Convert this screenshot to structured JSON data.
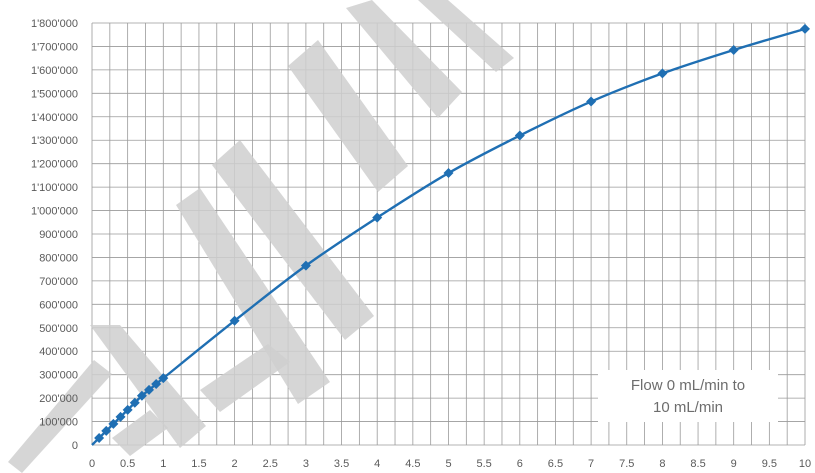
{
  "chart_data": {
    "type": "line",
    "title": "",
    "xlabel": "",
    "ylabel": "",
    "xlim": [
      0,
      10
    ],
    "ylim": [
      0,
      1800000
    ],
    "grid": true,
    "legend": "none",
    "x_ticks": [
      "0",
      "0.5",
      "1",
      "1.5",
      "2",
      "2.5",
      "3",
      "3.5",
      "4",
      "4.5",
      "5",
      "5.5",
      "6",
      "6.5",
      "7",
      "7.5",
      "8",
      "8.5",
      "9",
      "9.5",
      "10"
    ],
    "y_ticks": [
      "0",
      "100'000",
      "200'000",
      "300'000",
      "400'000",
      "500'000",
      "600'000",
      "700'000",
      "800'000",
      "900'000",
      "1'000'000",
      "1'100'000",
      "1'200'000",
      "1'300'000",
      "1'400'000",
      "1'500'000",
      "1'600'000",
      "1'700'000",
      "1'800'000"
    ],
    "series": [
      {
        "color": "#1f6fb3",
        "marker": "diamond",
        "x": [
          0.1,
          0.2,
          0.3,
          0.4,
          0.5,
          0.6,
          0.7,
          0.8,
          0.9,
          1,
          2,
          3,
          4,
          5,
          6,
          7,
          8,
          9,
          10
        ],
        "y": [
          30000,
          60000,
          90000,
          120000,
          150000,
          180000,
          210000,
          235000,
          260000,
          285000,
          530000,
          765000,
          970000,
          1160000,
          1320000,
          1465000,
          1585000,
          1685000,
          1775000
        ]
      }
    ],
    "annotation": {
      "line1": "Flow 0 mL/min to",
      "line2": "10 mL/min"
    },
    "watermark_text": "PRELIMINARY",
    "colors": {
      "line": "#1f6fb3",
      "grid": "#9a9a9a",
      "watermark": "#cfcfcf"
    }
  }
}
